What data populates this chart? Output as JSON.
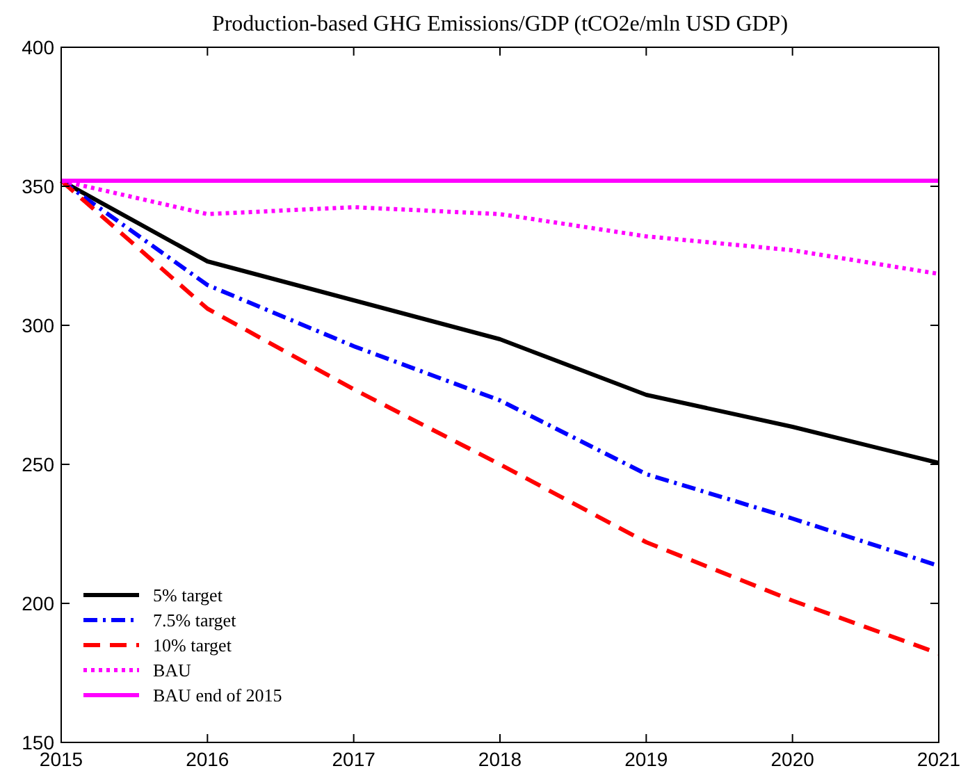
{
  "chart_data": {
    "type": "line",
    "title": "Production-based GHG Emissions/GDP (tCO2e/mln USD GDP)",
    "x": [
      2015,
      2016,
      2017,
      2018,
      2019,
      2020,
      2021
    ],
    "series": [
      {
        "name": "5% target",
        "color": "#000000",
        "line_style": "solid",
        "values": [
          352,
          323,
          309,
          295,
          275,
          263.5,
          250.5
        ]
      },
      {
        "name": "7.5% target",
        "color": "#0000ff",
        "line_style": "dashdot",
        "values": [
          352,
          314.5,
          292.5,
          273,
          246.5,
          230.5,
          213.5
        ]
      },
      {
        "name": "10% target",
        "color": "#ff0000",
        "line_style": "dashed",
        "values": [
          352,
          306,
          277,
          250,
          222,
          201,
          182
        ]
      },
      {
        "name": "BAU",
        "color": "#ff00ff",
        "line_style": "dotted",
        "values": [
          352,
          340,
          342.5,
          340,
          332,
          327,
          318.5
        ]
      },
      {
        "name": "BAU end of 2015",
        "color": "#ff00ff",
        "line_style": "solid",
        "values": [
          352,
          352,
          352,
          352,
          352,
          352,
          352
        ]
      }
    ],
    "xlim": [
      2015,
      2021
    ],
    "xticks": [
      2015,
      2016,
      2017,
      2018,
      2019,
      2020,
      2021
    ],
    "ylim": [
      150,
      400
    ],
    "yticks": [
      150,
      200,
      250,
      300,
      350,
      400
    ],
    "grid": false,
    "legend": "bottom left",
    "marker": "none"
  }
}
